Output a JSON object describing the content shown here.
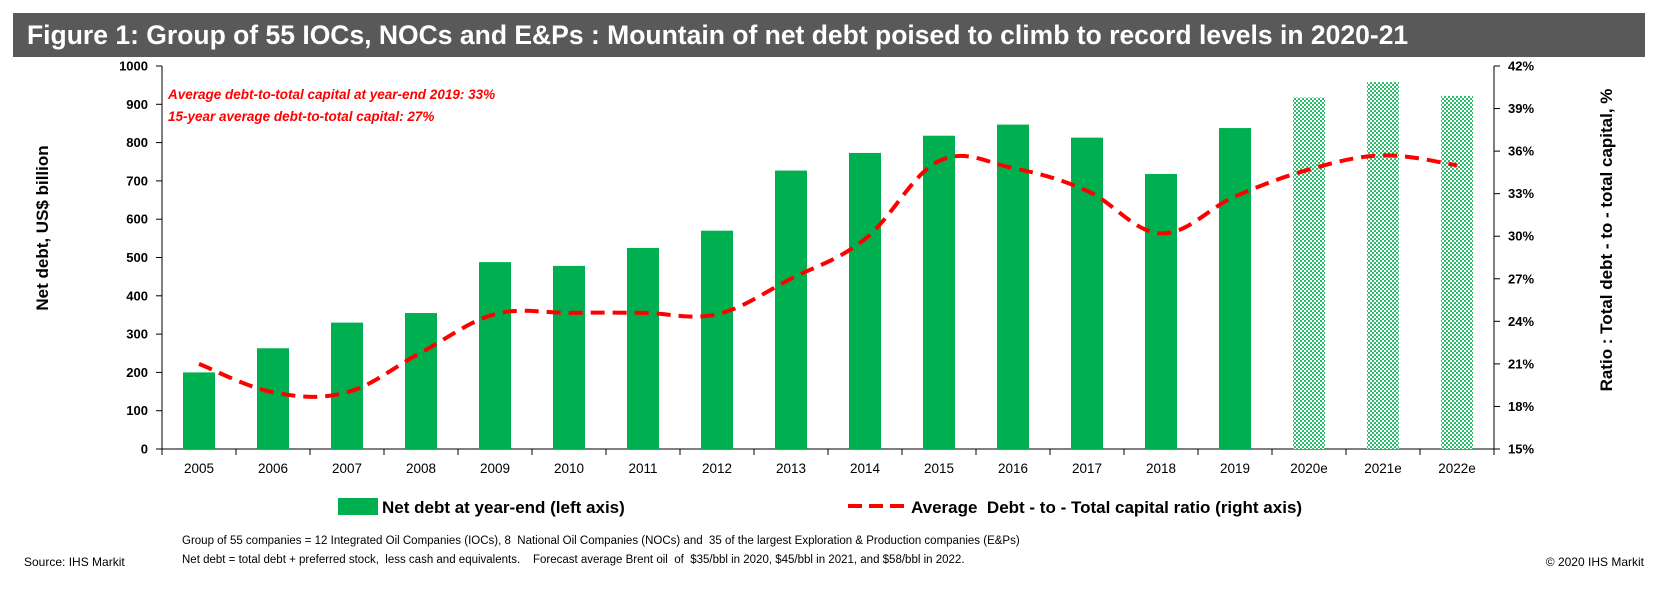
{
  "title": "Figure 1: Group of 55 IOCs, NOCs and E&Ps : Mountain of net debt poised to climb to record levels in 2020-21",
  "colors": {
    "title_bg": "#595959",
    "bar": "#00b050",
    "forecast_bar": "#00b050",
    "line": "#ff0000"
  },
  "annotations": [
    "Average debt-to-total capital at year-end 2019: 33%",
    "15-year average debt-to-total capital:  27%"
  ],
  "notes": [
    "Group of 55 companies = 12 Integrated Oil Companies (IOCs), 8  National Oil Companies (NOCs) and  35 of the largest Exploration & Production companies (E&Ps)",
    "Net debt = total debt + preferred stock,  less cash and equivalents.    Forecast average Brent oil  of  $35/bbl in 2020, $45/bbl in 2021, and $58/bbl in 2022."
  ],
  "source": "Source: IHS Markit",
  "copyright": "© 2020 IHS Markit",
  "chart_data": {
    "type": "bar",
    "categories": [
      "2005",
      "2006",
      "2007",
      "2008",
      "2009",
      "2010",
      "2011",
      "2012",
      "2013",
      "2014",
      "2015",
      "2016",
      "2017",
      "2018",
      "2019",
      "2020e",
      "2021e",
      "2022e"
    ],
    "forecast_categories": [
      "2020e",
      "2021e",
      "2022e"
    ],
    "series": [
      {
        "name": "Net debt at year-end (left axis)",
        "type": "bar",
        "axis": "left",
        "values": [
          200,
          263,
          330,
          355,
          488,
          478,
          525,
          570,
          727,
          773,
          818,
          847,
          813,
          718,
          838,
          918,
          958,
          922
        ]
      },
      {
        "name": "Average  Debt - to - Total capital ratio (right axis)",
        "type": "line",
        "axis": "right",
        "style": "dashed",
        "values": [
          21.0,
          19.0,
          19.0,
          21.8,
          24.5,
          24.6,
          24.6,
          24.5,
          27.0,
          29.8,
          35.3,
          34.8,
          33.2,
          30.2,
          32.8,
          34.7,
          35.7,
          35.0
        ]
      }
    ],
    "ylabel": "Net debt, US$ billion",
    "ylabel_right": "Ratio : Total debt - to - total capital, %",
    "ylim": [
      0,
      1000
    ],
    "ylim_right": [
      15,
      42
    ],
    "yticks": [
      "0",
      "100",
      "200",
      "300",
      "400",
      "500",
      "600",
      "700",
      "800",
      "900",
      "1000"
    ],
    "yticks_right": [
      "15%",
      "18%",
      "21%",
      "24%",
      "27%",
      "30%",
      "33%",
      "36%",
      "39%",
      "42%"
    ],
    "grid": false,
    "legend_position": "bottom"
  }
}
